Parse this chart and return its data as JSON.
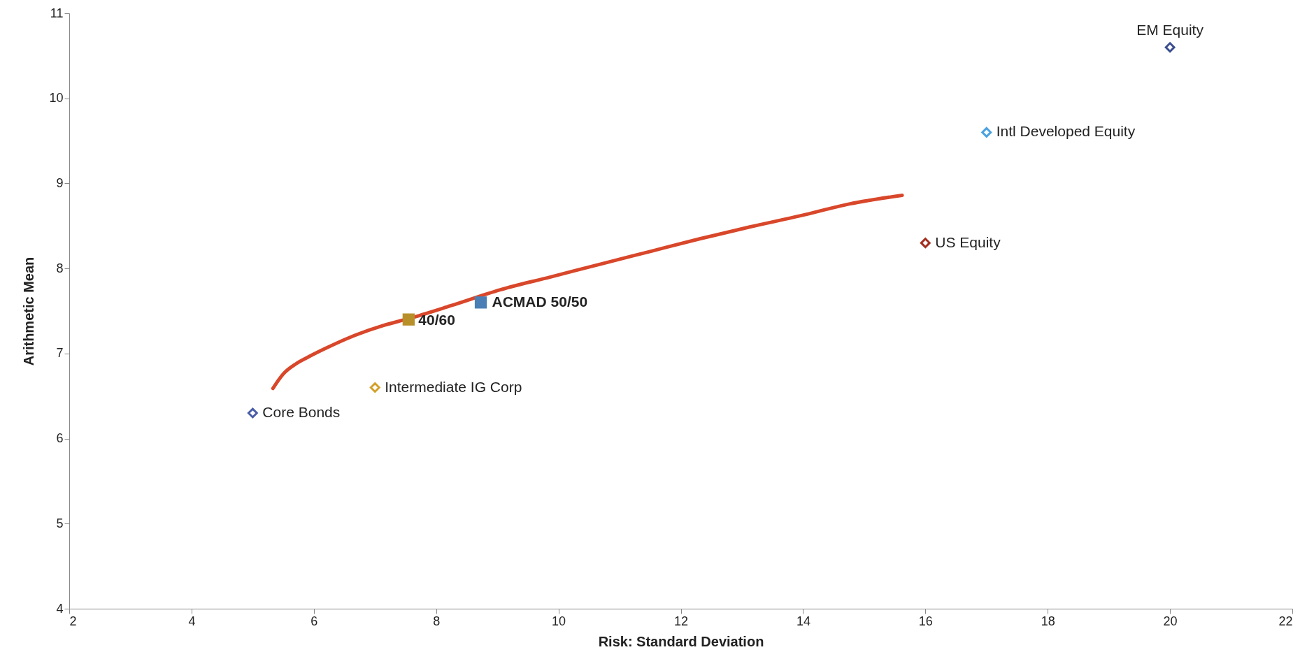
{
  "chart_data": {
    "type": "scatter",
    "xlabel": "Risk: Standard Deviation",
    "ylabel": "Arithmetic Mean",
    "xlim": [
      2,
      22
    ],
    "xticks": [
      2,
      4,
      6,
      8,
      10,
      12,
      14,
      16,
      18,
      20,
      22
    ],
    "ylim": [
      4,
      11
    ],
    "yticks": [
      4,
      5,
      6,
      7,
      8,
      9,
      10,
      11
    ],
    "grid": false,
    "series": [
      {
        "type": "line",
        "color": "#d9472b",
        "marker": "none",
        "x": [
          5.33,
          5.5,
          5.71,
          5.91,
          6.19,
          6.59,
          7.14,
          7.55,
          8.23,
          9.05,
          9.87,
          10.68,
          11.5,
          12.32,
          13.14,
          13.96,
          14.77,
          15.62
        ],
        "values": [
          6.59,
          6.76,
          6.88,
          6.96,
          7.06,
          7.19,
          7.33,
          7.41,
          7.56,
          7.75,
          7.9,
          8.05,
          8.2,
          8.35,
          8.49,
          8.62,
          8.76,
          8.86
        ]
      },
      {
        "name": "EM Equity",
        "color": "#3b4f8f",
        "marker": "diamond",
        "x": [
          20
        ],
        "values": [
          10.6
        ]
      },
      {
        "name": "Intl Developed Equity",
        "color": "#4aa3df",
        "marker": "diamond",
        "x": [
          17
        ],
        "values": [
          9.6
        ]
      },
      {
        "name": "US Equity",
        "color": "#a33020",
        "marker": "diamond",
        "x": [
          16
        ],
        "values": [
          8.3
        ]
      },
      {
        "name": "ACMAD 50/50",
        "color": "#4a7fb5",
        "marker": "square",
        "x": [
          8.73
        ],
        "values": [
          7.6
        ]
      },
      {
        "name": "40/60",
        "color": "#b8902a",
        "marker": "square",
        "x": [
          7.55
        ],
        "values": [
          7.4
        ]
      },
      {
        "name": "Intermediate IG Corp",
        "color": "#d4a02a",
        "marker": "diamond",
        "x": [
          7
        ],
        "values": [
          6.6
        ]
      },
      {
        "name": "Core Bonds",
        "color": "#4a5da8",
        "marker": "diamond",
        "x": [
          5
        ],
        "values": [
          6.3
        ]
      }
    ]
  }
}
